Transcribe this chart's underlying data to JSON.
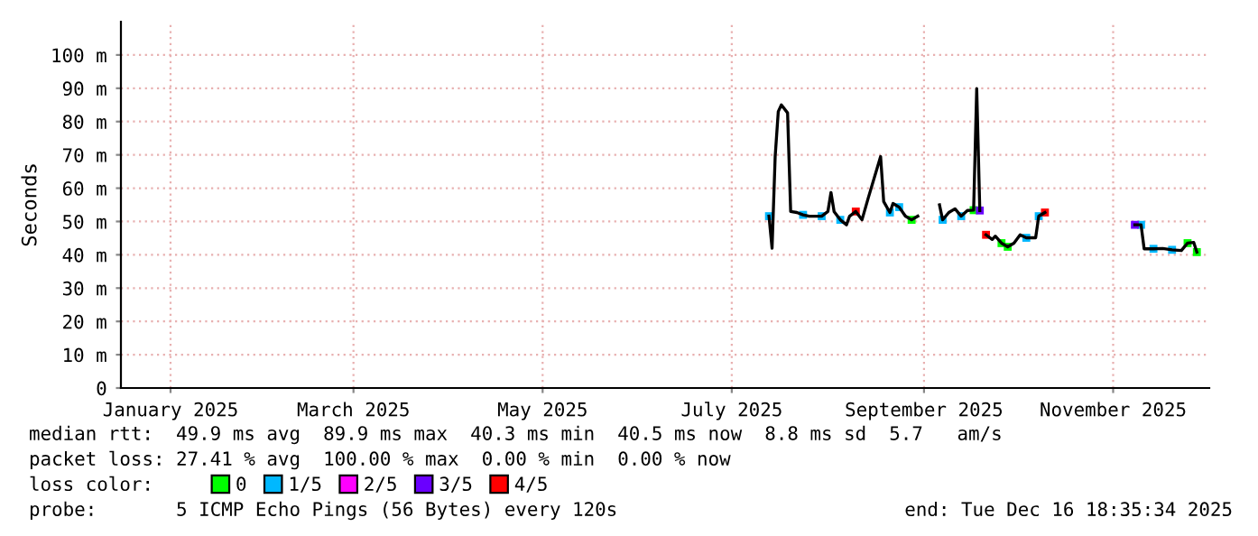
{
  "chart_data": {
    "type": "line",
    "ylabel": "Seconds",
    "legend_title": "loss color:",
    "legend": "bottom",
    "grid": true,
    "xlim": [
      "2024-12-16",
      "2025-12-02"
    ],
    "xticks": [
      {
        "value": "2025-01-01",
        "label": "January 2025"
      },
      {
        "value": "2025-03-01",
        "label": "March 2025"
      },
      {
        "value": "2025-05-01",
        "label": "May 2025"
      },
      {
        "value": "2025-07-01",
        "label": "July 2025"
      },
      {
        "value": "2025-09-01",
        "label": "September 2025"
      },
      {
        "value": "2025-11-01",
        "label": "November 2025"
      }
    ],
    "ylim": [
      0,
      110
    ],
    "yticks": [
      0,
      {
        "value": 10,
        "label": "10 m"
      },
      {
        "value": 20,
        "label": "20 m"
      },
      {
        "value": 30,
        "label": "30 m"
      },
      {
        "value": 40,
        "label": "40 m"
      },
      {
        "value": 50,
        "label": "50 m"
      },
      {
        "value": 60,
        "label": "60 m"
      },
      {
        "value": 70,
        "label": "70 m"
      },
      {
        "value": 80,
        "label": "80 m"
      },
      {
        "value": 90,
        "label": "90 m"
      },
      {
        "value": 100,
        "label": "100 m"
      }
    ],
    "series": [
      {
        "color": "#000000",
        "x": [
          "2025-07-13",
          "2025-07-14",
          "2025-07-15",
          "2025-07-16",
          "2025-07-17",
          "2025-07-19",
          "2025-07-20",
          "2025-07-22",
          "2025-07-24",
          "2025-07-26",
          "2025-07-30",
          "2025-08-01",
          "2025-08-02",
          "2025-08-03",
          "2025-08-05",
          "2025-08-07",
          "2025-08-08",
          "2025-08-10",
          "2025-08-12",
          "2025-08-14",
          "2025-08-18",
          "2025-08-19",
          "2025-08-21",
          "2025-08-22",
          "2025-08-24",
          "2025-08-26",
          "2025-08-28",
          "2025-08-30",
          "2025-09-03",
          "2025-09-06",
          "2025-09-07",
          "2025-09-09",
          "2025-09-11",
          "2025-09-13",
          "2025-09-15",
          "2025-09-17",
          "2025-09-18",
          "2025-09-19",
          "2025-09-20",
          "2025-09-21",
          "2025-09-23",
          "2025-09-24",
          "2025-09-26",
          "2025-09-28",
          "2025-09-30",
          "2025-10-02",
          "2025-10-04",
          "2025-10-07",
          "2025-10-08",
          "2025-10-10",
          "2025-10-20",
          "2025-11-08",
          "2025-11-10",
          "2025-11-11",
          "2025-11-14",
          "2025-11-17",
          "2025-11-20",
          "2025-11-23",
          "2025-11-25",
          "2025-11-27",
          "2025-11-28"
        ],
        "values": [
          51.6,
          42,
          69.5,
          83,
          85,
          82.6,
          53,
          52.7,
          52,
          51.6,
          51.6,
          53,
          58.7,
          53,
          50.5,
          49,
          51.6,
          53,
          50.5,
          57,
          69.5,
          56,
          52.7,
          55.4,
          54.3,
          51.6,
          50.5,
          51.6,
          null,
          55,
          50.5,
          52.7,
          53.8,
          51.6,
          53.3,
          53.4,
          89.9,
          53.3,
          null,
          46,
          44.6,
          45.6,
          43.5,
          42.4,
          43.5,
          46,
          45.1,
          45.1,
          51.6,
          52.7,
          null,
          49,
          49,
          41.8,
          41.8,
          41.9,
          41.5,
          41.3,
          43.5,
          43.7,
          40.8
        ]
      },
      {
        "name": "0",
        "type": "scatter",
        "color": "#00ff00",
        "marker": "square",
        "x": [
          "2025-08-28",
          "2025-09-17",
          "2025-09-26",
          "2025-09-28",
          "2025-11-25",
          "2025-11-28"
        ],
        "values": [
          50.5,
          53.4,
          43.5,
          42.4,
          43.5,
          40.8
        ]
      },
      {
        "name": "1/5",
        "type": "scatter",
        "color": "#00b8ff",
        "marker": "square",
        "x": [
          "2025-07-13",
          "2025-07-24",
          "2025-07-30",
          "2025-08-05",
          "2025-08-21",
          "2025-08-24",
          "2025-09-07",
          "2025-09-13",
          "2025-10-04",
          "2025-10-08",
          "2025-11-10",
          "2025-11-14",
          "2025-11-20"
        ],
        "values": [
          51.6,
          52,
          51.6,
          50.5,
          52.7,
          54.3,
          50.5,
          51.6,
          45.1,
          51.6,
          49,
          41.8,
          41.5
        ]
      },
      {
        "name": "2/5",
        "type": "scatter",
        "color": "#ff00ff",
        "marker": "square"
      },
      {
        "name": "3/5",
        "type": "scatter",
        "color": "#6a00ff",
        "marker": "square",
        "x": [
          "2025-09-19",
          "2025-11-08"
        ],
        "values": [
          53.3,
          49
        ]
      },
      {
        "name": "4/5",
        "type": "scatter",
        "color": "#ff0000",
        "marker": "square",
        "x": [
          "2025-08-10",
          "2025-09-21",
          "2025-10-10"
        ],
        "values": [
          53,
          46,
          52.7
        ]
      }
    ],
    "annotations": [
      "median rtt:  49.9 ms avg  89.9 ms max  40.3 ms min  40.5 ms now  8.8 ms sd  5.7   am/s",
      "packet loss: 27.41 % avg  100.00 % max  0.00 % min  0.00 % now",
      "probe:       5 ICMP Echo Pings (56 Bytes) every 120s",
      "end: Tue Dec 16 18:35:34 2025"
    ]
  }
}
